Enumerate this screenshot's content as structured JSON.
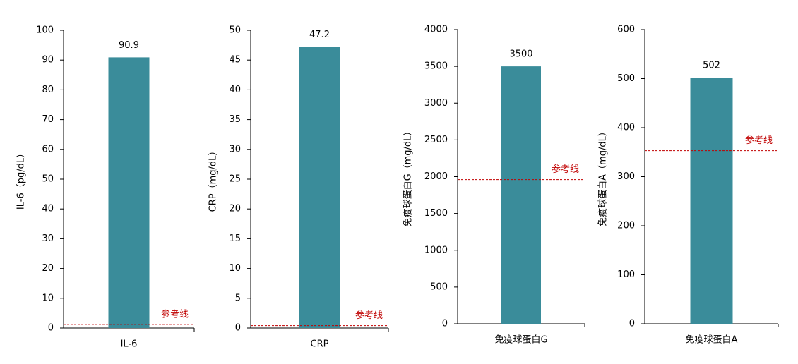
{
  "chart_data": [
    {
      "type": "bar",
      "categories": [
        "IL-6"
      ],
      "values": [
        90.9
      ],
      "color": "#3a8c9a",
      "y_label": "IL-6（pg/dL）",
      "ylim": [
        0,
        100
      ],
      "yticks": [
        0,
        10,
        20,
        30,
        40,
        50,
        60,
        70,
        80,
        90,
        100
      ],
      "reference": {
        "label": "参考线",
        "value": 1.2,
        "color": "#c00000"
      }
    },
    {
      "type": "bar",
      "categories": [
        "CRP"
      ],
      "values": [
        47.2
      ],
      "color": "#3a8c9a",
      "y_label": "CRP（mg/dL）",
      "ylim": [
        0,
        50
      ],
      "yticks": [
        0,
        5,
        10,
        15,
        20,
        25,
        30,
        35,
        40,
        45,
        50
      ],
      "reference": {
        "label": "参考线",
        "value": 0.4,
        "color": "#c00000"
      }
    },
    {
      "type": "bar",
      "categories": [
        "免疫球蛋白G"
      ],
      "values": [
        3500
      ],
      "color": "#3a8c9a",
      "y_label": "免疫球蛋白G（mg/dL）",
      "ylim": [
        0,
        4000
      ],
      "yticks": [
        0,
        500,
        1000,
        1500,
        2000,
        2500,
        3000,
        3500,
        4000
      ],
      "reference": {
        "label": "参考线",
        "value": 1960,
        "color": "#c00000"
      }
    },
    {
      "type": "bar",
      "categories": [
        "免疫球蛋白A"
      ],
      "values": [
        502
      ],
      "color": "#3a8c9a",
      "y_label": "免疫球蛋白A（mg/dL）",
      "ylim": [
        0,
        600
      ],
      "yticks": [
        0,
        100,
        200,
        300,
        400,
        500,
        600
      ],
      "reference": {
        "label": "参考线",
        "value": 353,
        "color": "#c00000"
      }
    }
  ]
}
